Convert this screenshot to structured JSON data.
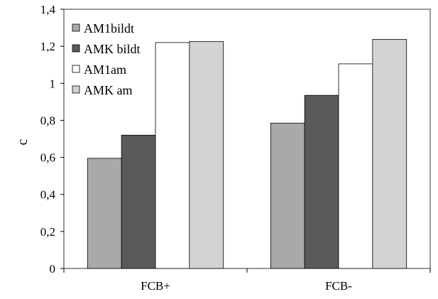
{
  "chart_data": {
    "type": "bar",
    "title": "",
    "xlabel": "",
    "ylabel": "c",
    "ylim": [
      0,
      1.4
    ],
    "ytick_step": 0.2,
    "ytick_labels": [
      "0",
      "0,2",
      "0,4",
      "0,6",
      "0,8",
      "1",
      "1,2",
      "1,4"
    ],
    "categories": [
      "FCB+",
      "FCB-"
    ],
    "series": [
      {
        "name": "AM1bildt",
        "color": "#a9a9a9",
        "values": [
          0.595,
          0.785
        ]
      },
      {
        "name": "AMK bildt",
        "color": "#5a5a5a",
        "values": [
          0.72,
          0.935
        ]
      },
      {
        "name": "AM1am",
        "color": "#ffffff",
        "values": [
          1.22,
          1.105
        ]
      },
      {
        "name": "AMK am",
        "color": "#d3d3d3",
        "values": [
          1.225,
          1.237
        ]
      }
    ],
    "grid": false,
    "legend_position": "top-left"
  }
}
